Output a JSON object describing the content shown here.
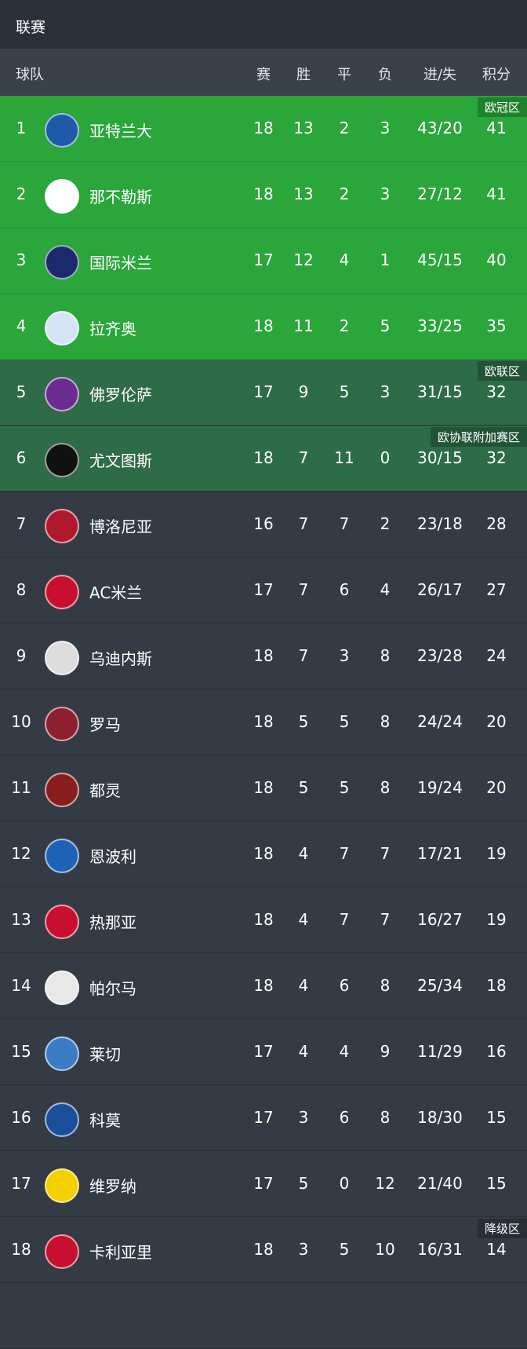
{
  "header": {
    "title": "联赛"
  },
  "table": {
    "columns": [
      "球队",
      "赛",
      "胜",
      "平",
      "负",
      "进/失",
      "积分"
    ],
    "rows": [
      {
        "rank": "1",
        "team": "亚特兰大",
        "played": "18",
        "won": "13",
        "drawn": "2",
        "lost": "3",
        "goals": "43/20",
        "points": "41",
        "zone": "欧冠区"
      },
      {
        "rank": "2",
        "team": "那不勒斯",
        "played": "18",
        "won": "13",
        "drawn": "2",
        "lost": "3",
        "goals": "27/12",
        "points": "41"
      },
      {
        "rank": "3",
        "team": "国际米兰",
        "played": "17",
        "won": "12",
        "drawn": "4",
        "lost": "1",
        "goals": "45/15",
        "points": "40"
      },
      {
        "rank": "4",
        "team": "拉齐奥",
        "played": "18",
        "won": "11",
        "drawn": "2",
        "lost": "5",
        "goals": "33/25",
        "points": "35"
      },
      {
        "rank": "5",
        "team": "佛罗伦萨",
        "played": "17",
        "won": "9",
        "drawn": "5",
        "lost": "3",
        "goals": "31/15",
        "points": "32",
        "zone": "欧联区"
      },
      {
        "rank": "6",
        "team": "尤文图斯",
        "played": "18",
        "won": "7",
        "drawn": "11",
        "lost": "0",
        "goals": "30/15",
        "points": "32",
        "zone": "欧协联附加赛区"
      },
      {
        "rank": "7",
        "team": "博洛尼亚",
        "played": "16",
        "won": "7",
        "drawn": "7",
        "lost": "2",
        "goals": "23/18",
        "points": "28"
      },
      {
        "rank": "8",
        "team": "AC米兰",
        "played": "17",
        "won": "7",
        "drawn": "6",
        "lost": "4",
        "goals": "26/17",
        "points": "27"
      },
      {
        "rank": "9",
        "team": "乌迪内斯",
        "played": "18",
        "won": "7",
        "drawn": "3",
        "lost": "8",
        "goals": "23/28",
        "points": "24"
      },
      {
        "rank": "10",
        "team": "罗马",
        "played": "18",
        "won": "5",
        "drawn": "5",
        "lost": "8",
        "goals": "24/24",
        "points": "20"
      },
      {
        "rank": "11",
        "team": "都灵",
        "played": "18",
        "won": "5",
        "drawn": "5",
        "lost": "8",
        "goals": "19/24",
        "points": "20"
      },
      {
        "rank": "12",
        "team": "恩波利",
        "played": "18",
        "won": "4",
        "drawn": "7",
        "lost": "7",
        "goals": "17/21",
        "points": "19"
      },
      {
        "rank": "13",
        "team": "热那亚",
        "played": "18",
        "won": "4",
        "drawn": "7",
        "lost": "7",
        "goals": "16/27",
        "points": "19"
      },
      {
        "rank": "14",
        "team": "帕尔马",
        "played": "18",
        "won": "4",
        "drawn": "6",
        "lost": "8",
        "goals": "25/34",
        "points": "18"
      },
      {
        "rank": "15",
        "team": "莱切",
        "played": "17",
        "won": "4",
        "drawn": "4",
        "lost": "9",
        "goals": "11/29",
        "points": "16"
      },
      {
        "rank": "16",
        "team": "科莫",
        "played": "17",
        "won": "3",
        "drawn": "6",
        "lost": "8",
        "goals": "18/30",
        "points": "15"
      },
      {
        "rank": "17",
        "team": "维罗纳",
        "played": "17",
        "won": "5",
        "drawn": "0",
        "lost": "12",
        "goals": "21/40",
        "points": "15"
      },
      {
        "rank": "18",
        "team": "卡利亚里",
        "played": "18",
        "won": "3",
        "drawn": "5",
        "lost": "10",
        "goals": "16/31",
        "points": "14",
        "zone": "降级区"
      }
    ]
  }
}
